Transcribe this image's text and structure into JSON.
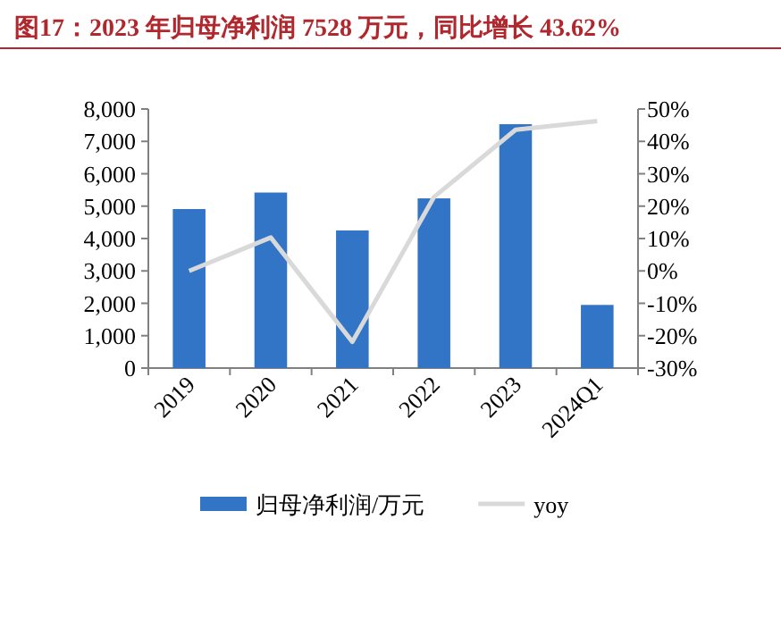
{
  "chart_data": {
    "type": "bar",
    "title": "图17：2023 年归母净利润 7528 万元，同比增长 43.62%",
    "categories": [
      "2019",
      "2020",
      "2021",
      "2022",
      "2023",
      "2024Q1"
    ],
    "series": [
      {
        "name": "归母净利润/万元",
        "color": "#3274c5",
        "values": [
          4910,
          5420,
          4250,
          5240,
          7530,
          1950
        ]
      },
      {
        "name": "yoy",
        "type": "line",
        "axis": "y2",
        "color": "#d9d9d9",
        "values": [
          0.0,
          10.3,
          -21.9,
          22.8,
          43.6,
          46.3
        ]
      }
    ],
    "ylim": [
      0,
      8000
    ],
    "yticks": [
      {
        "value": 0,
        "label": "0"
      },
      {
        "value": 1000,
        "label": "1,000"
      },
      {
        "value": 2000,
        "label": "2,000"
      },
      {
        "value": 3000,
        "label": "3,000"
      },
      {
        "value": 4000,
        "label": "4,000"
      },
      {
        "value": 5000,
        "label": "5,000"
      },
      {
        "value": 6000,
        "label": "6,000"
      },
      {
        "value": 7000,
        "label": "7,000"
      },
      {
        "value": 8000,
        "label": "8,000"
      }
    ],
    "y2lim": [
      -30,
      50
    ],
    "y2ticks": [
      {
        "value": -30,
        "label": "-30%"
      },
      {
        "value": -20,
        "label": "-20%"
      },
      {
        "value": -10,
        "label": "-10%"
      },
      {
        "value": 0,
        "label": "0%"
      },
      {
        "value": 10,
        "label": "10%"
      },
      {
        "value": 20,
        "label": "20%"
      },
      {
        "value": 30,
        "label": "30%"
      },
      {
        "value": 40,
        "label": "40%"
      },
      {
        "value": 50,
        "label": "50%"
      }
    ],
    "legend": "bottom",
    "grid": false,
    "marker": "none"
  }
}
